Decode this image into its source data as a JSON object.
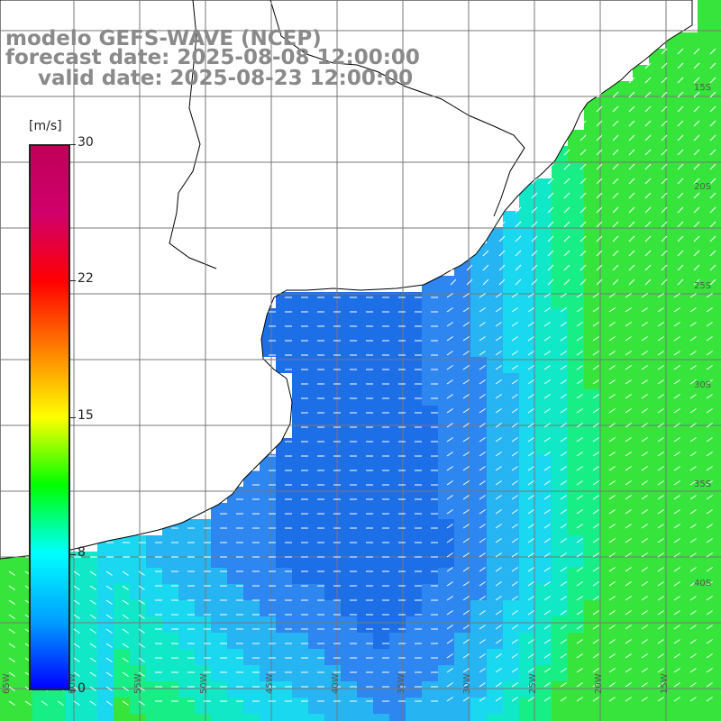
{
  "title": {
    "line1": "modelo GEFS-WAVE (NCEP)",
    "line2": "forecast date: 2025-08-08 12:00:00",
    "line3": "valid date: 2025-08-23 12:00:00"
  },
  "colorbar": {
    "unit": "[m/s]",
    "ticks": [
      "30",
      "22",
      "15",
      "8",
      "0"
    ],
    "colors": [
      "#0000ff",
      "#00a0ff",
      "#00ffff",
      "#00ff00",
      "#ffff00",
      "#ff8000",
      "#ff0000",
      "#d0006a",
      "#c0005a"
    ]
  },
  "map": {
    "lon_labels": [
      "65W",
      "60W",
      "55W",
      "50W",
      "45W",
      "40W",
      "35W",
      "30W",
      "25W",
      "20W",
      "15W"
    ],
    "lat_labels": [
      "15S",
      "20S",
      "25S",
      "30S",
      "35S",
      "40S"
    ],
    "grid": true,
    "arrow_color": "#ffffff",
    "coastline_color": "#000000"
  }
}
